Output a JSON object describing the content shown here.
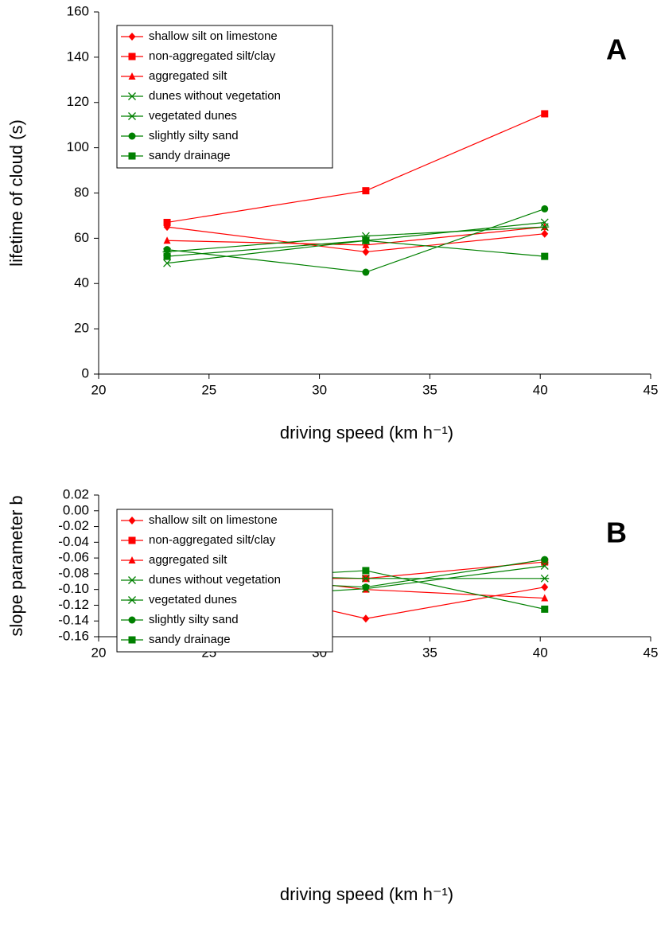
{
  "chart_data": [
    {
      "type": "line",
      "annotation": "A",
      "ylabel": "lifetime of cloud (s)",
      "xlabel": "driving speed (km h⁻¹)",
      "x": [
        23.1,
        32.1,
        40.2
      ],
      "xlim": [
        20,
        45
      ],
      "xticks": [
        20,
        25,
        30,
        35,
        40,
        45
      ],
      "ylim": [
        0,
        160
      ],
      "yticks": [
        0,
        20,
        40,
        60,
        80,
        100,
        120,
        140,
        160
      ],
      "legend": "upper left",
      "series": [
        {
          "name": "shallow silt on limestone",
          "color": "#ff0000",
          "marker": "diamond",
          "values": [
            65,
            54,
            62
          ]
        },
        {
          "name": "non-aggregated silt/clay",
          "color": "#ff0000",
          "marker": "square",
          "values": [
            67,
            81,
            115
          ]
        },
        {
          "name": "aggregated silt",
          "color": "#ff0000",
          "marker": "triangle",
          "values": [
            59,
            57,
            65
          ]
        },
        {
          "name": "dunes without vegetation",
          "color": "#008000",
          "marker": "x",
          "values": [
            49,
            59,
            67
          ]
        },
        {
          "name": "vegetated dunes",
          "color": "#008000",
          "marker": "star",
          "values": [
            54,
            61,
            65
          ]
        },
        {
          "name": "slightly silty sand",
          "color": "#008000",
          "marker": "circle",
          "values": [
            55,
            45,
            73
          ]
        },
        {
          "name": "sandy drainage",
          "color": "#008000",
          "marker": "square",
          "values": [
            52,
            59,
            52
          ]
        }
      ]
    },
    {
      "type": "line",
      "annotation": "B",
      "ylabel": "slope parameter b",
      "xlabel": "driving speed (km h⁻¹)",
      "x": [
        23.1,
        32.1,
        40.2
      ],
      "xlim": [
        20,
        45
      ],
      "xticks": [
        20,
        25,
        30,
        35,
        40,
        45
      ],
      "ylim": [
        -0.16,
        0.02
      ],
      "yticks": [
        -0.16,
        -0.14,
        -0.12,
        {
          "value": -0.1,
          "label": "-0.10"
        },
        -0.08,
        -0.06,
        -0.04,
        -0.02,
        {
          "value": 0,
          "label": "0.00"
        },
        0.02
      ],
      "legend": "upper left",
      "series": [
        {
          "name": "shallow silt on limestone",
          "color": "#ff0000",
          "marker": "diamond",
          "values": [
            -0.079,
            -0.137,
            -0.097
          ]
        },
        {
          "name": "non-aggregated silt/clay",
          "color": "#ff0000",
          "marker": "square",
          "values": [
            -0.086,
            -0.086,
            -0.065
          ]
        },
        {
          "name": "aggregated silt",
          "color": "#ff0000",
          "marker": "triangle",
          "values": [
            -0.069,
            -0.1,
            -0.111
          ]
        },
        {
          "name": "dunes without vegetation",
          "color": "#008000",
          "marker": "x",
          "values": [
            -0.114,
            -0.099,
            -0.07
          ]
        },
        {
          "name": "vegetated dunes",
          "color": "#008000",
          "marker": "star",
          "values": [
            -0.08,
            -0.086,
            -0.086
          ]
        },
        {
          "name": "slightly silty sand",
          "color": "#008000",
          "marker": "circle",
          "values": [
            -0.085,
            -0.097,
            -0.062
          ]
        },
        {
          "name": "sandy drainage",
          "color": "#008000",
          "marker": "square",
          "values": [
            -0.09,
            -0.076,
            -0.125
          ]
        }
      ]
    }
  ]
}
